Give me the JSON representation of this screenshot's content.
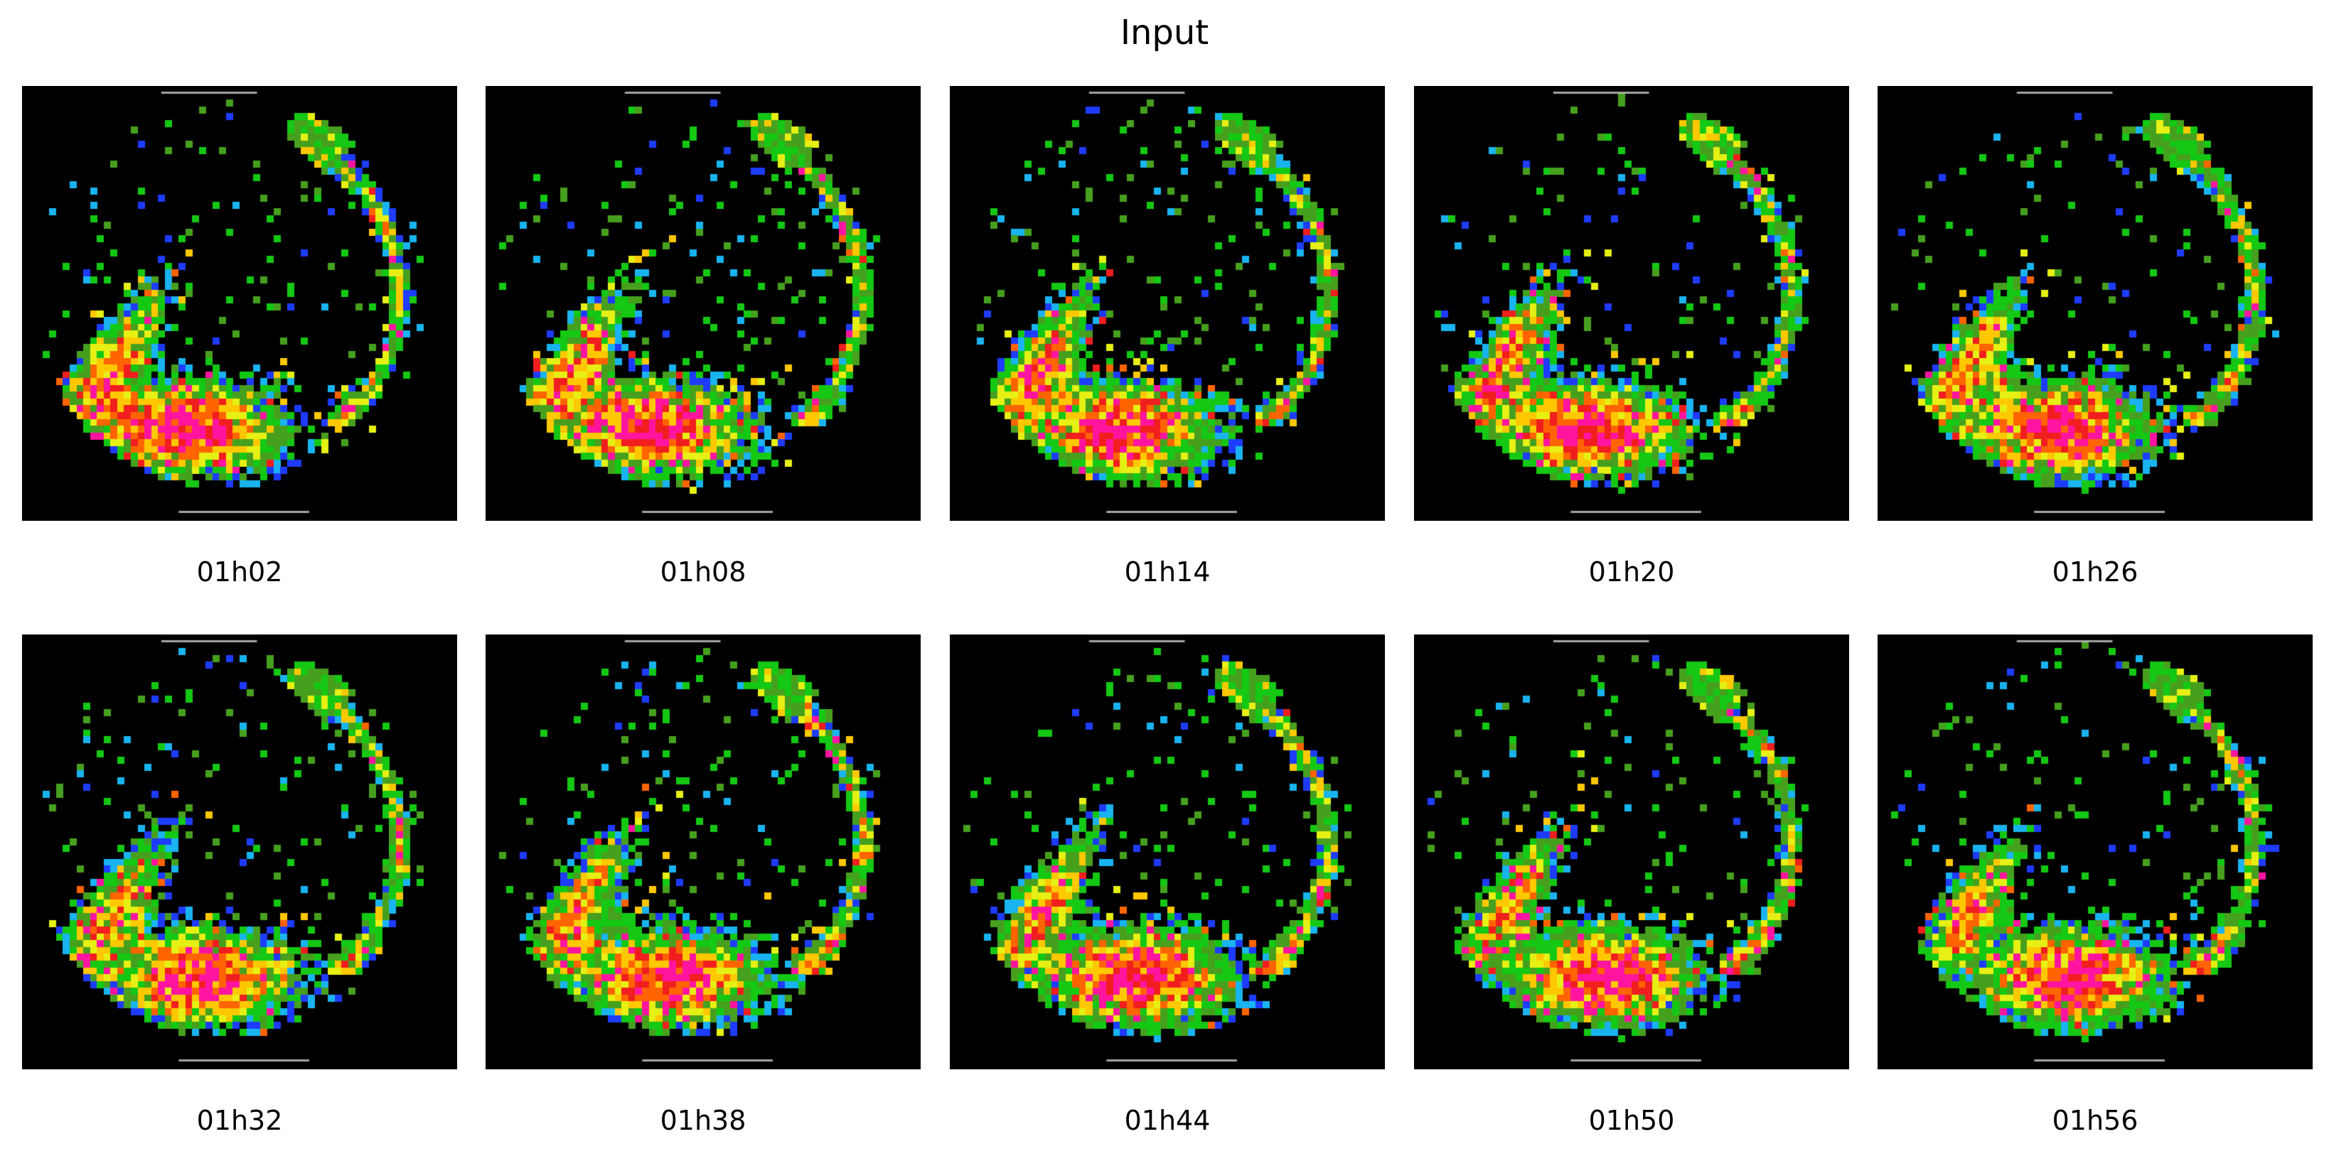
{
  "figure": {
    "title": "Input",
    "frames": [
      {
        "label": "01h02"
      },
      {
        "label": "01h08"
      },
      {
        "label": "01h14"
      },
      {
        "label": "01h20"
      },
      {
        "label": "01h26"
      },
      {
        "label": "01h32"
      },
      {
        "label": "01h38"
      },
      {
        "label": "01h44"
      },
      {
        "label": "01h50"
      },
      {
        "label": "01h56"
      }
    ]
  },
  "colors": {
    "background": "#000000",
    "radar_scale": [
      "#1e3cff",
      "#19b4f0",
      "#14c814",
      "#46a01e",
      "#e6f014",
      "#ffc800",
      "#ff6400",
      "#f01e1e",
      "#ff14a0"
    ]
  }
}
